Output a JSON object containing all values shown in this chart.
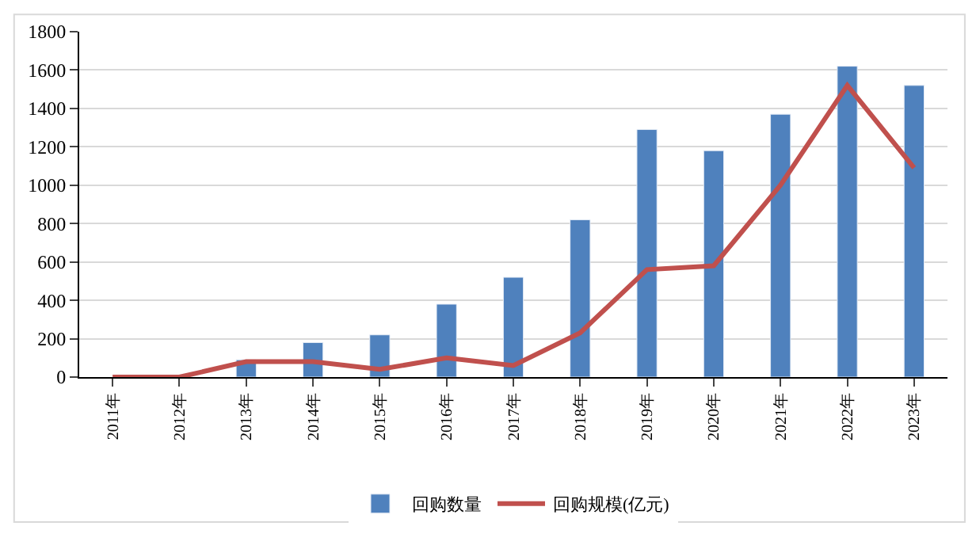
{
  "chart_data": {
    "type": "bar",
    "categories": [
      "2011年",
      "2012年",
      "2013年",
      "2014年",
      "2015年",
      "2016年",
      "2017年",
      "2018年",
      "2019年",
      "2020年",
      "2021年",
      "2022年",
      "2023年"
    ],
    "series": [
      {
        "name": "回购数量",
        "color": "#4f81bd",
        "values": [
          null,
          null,
          90,
          180,
          220,
          380,
          520,
          820,
          1290,
          1180,
          1370,
          1620,
          1520
        ]
      },
      {
        "name": "回购规模(亿元)",
        "type": "line",
        "color": "#c0504d",
        "marker": "none",
        "values": [
          0,
          0,
          80,
          80,
          40,
          100,
          60,
          230,
          560,
          580,
          1000,
          1520,
          1090
        ]
      }
    ],
    "ylim": [
      0,
      1800
    ],
    "yticks": [
      0,
      200,
      400,
      600,
      800,
      1000,
      1200,
      1400,
      1600,
      1800
    ],
    "grid": "y",
    "legend": "bottom"
  }
}
